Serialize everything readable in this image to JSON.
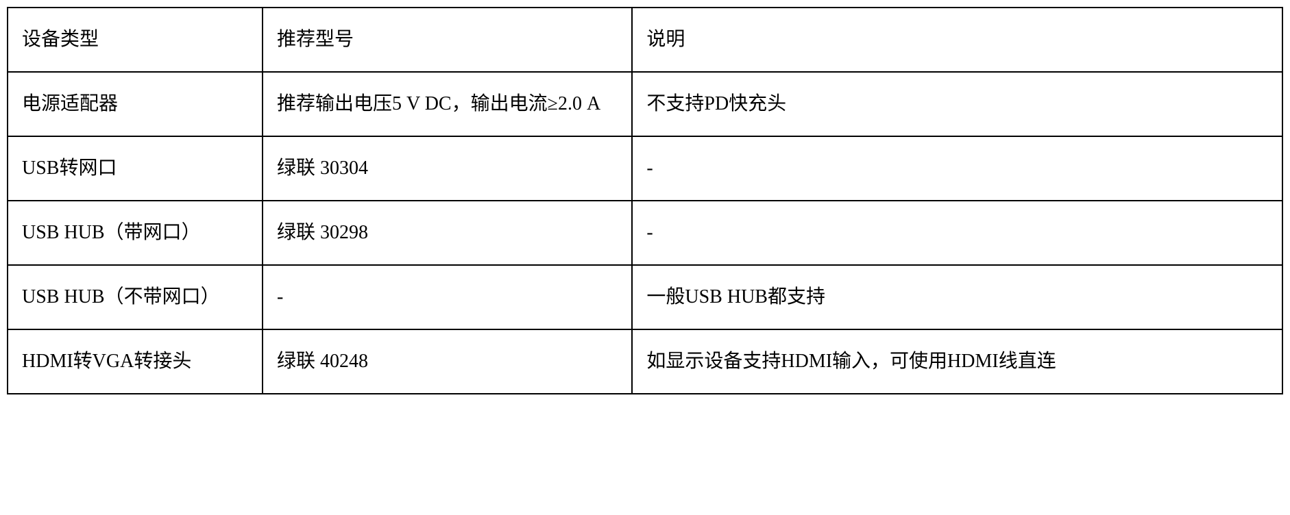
{
  "table": {
    "columns": [
      {
        "header": "设备类型",
        "width": "20%"
      },
      {
        "header": "推荐型号",
        "width": "29%"
      },
      {
        "header": "说明",
        "width": "51%"
      }
    ],
    "rows": [
      {
        "c0": "电源适配器",
        "c1": "推荐输出电压5 V DC，输出电流≥2.0 A",
        "c2": "不支持PD快充头"
      },
      {
        "c0": "USB转网口",
        "c1": "绿联 30304",
        "c2": "-"
      },
      {
        "c0": "USB HUB（带网口）",
        "c1": "绿联 30298",
        "c2": "-"
      },
      {
        "c0": "USB HUB（不带网口）",
        "c1": "-",
        "c2": "一般USB HUB都支持"
      },
      {
        "c0": "HDMI转VGA转接头",
        "c1": "绿联 40248",
        "c2": "如显示设备支持HDMI输入，可使用HDMI线直连"
      }
    ],
    "border_color": "#000000",
    "background_color": "#ffffff",
    "text_color": "#000000",
    "font_size": 28,
    "font_family": "SimSun",
    "cell_padding_v": 18,
    "cell_padding_h": 20,
    "line_height": 2.0
  }
}
